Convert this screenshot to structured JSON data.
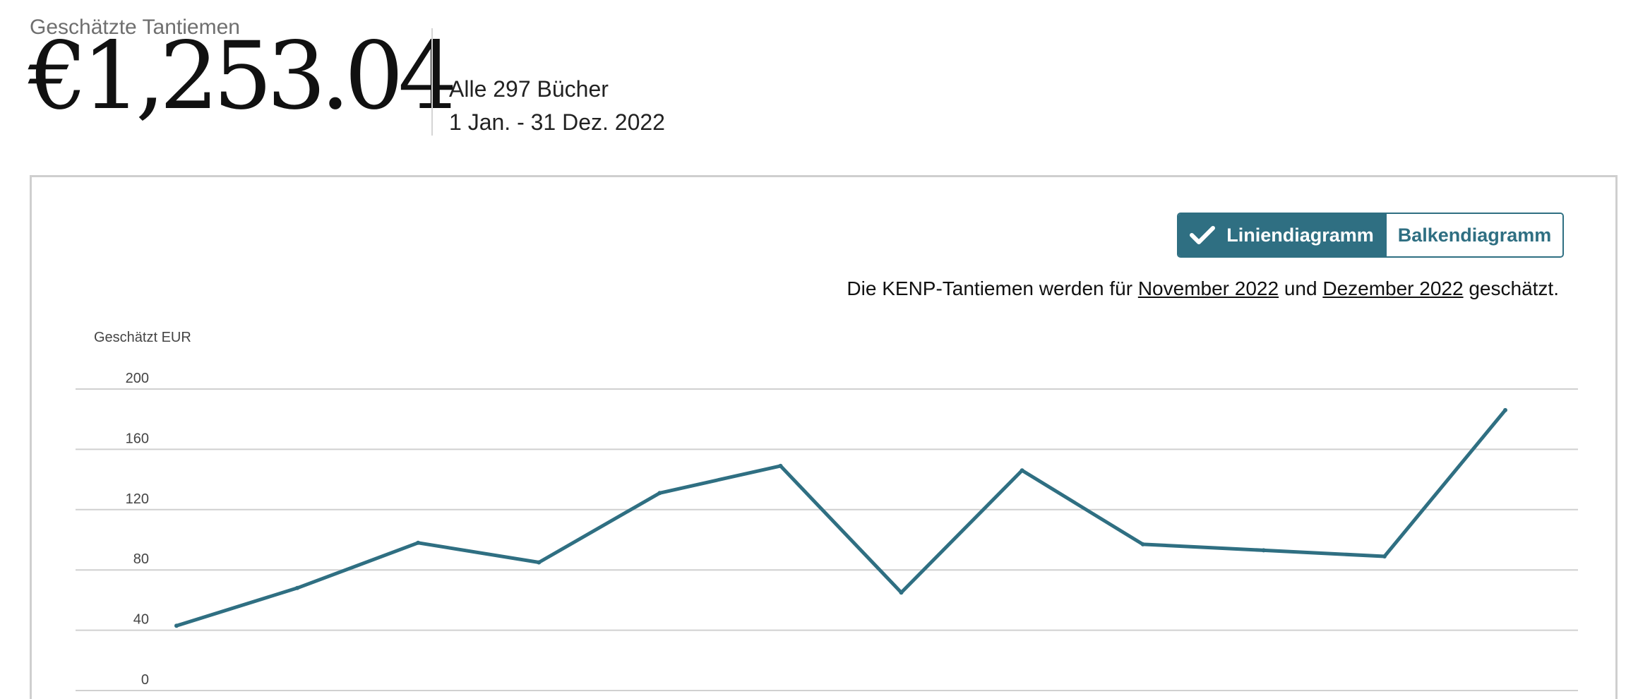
{
  "header": {
    "subtitle": "Geschätzte Tantiemen",
    "amount": "€1,253.04",
    "books": "Alle 297 Bücher",
    "date_range": "1 Jan. - 31 Dez. 2022"
  },
  "toggle": {
    "line_label": "Liniendiagramm",
    "bar_label": "Balkendiagramm",
    "active": "line"
  },
  "notice": {
    "prefix": "Die KENP-Tantiemen werden für",
    "link_1": "November 2022",
    "connector": "und",
    "link_2": "Dezember 2022",
    "suffix": "geschätzt."
  },
  "colors": {
    "accent": "#2f6f82",
    "line": "#2f6f82",
    "grid": "#d0d0d0",
    "subtle_text": "#6f6f6f"
  },
  "icons": {
    "toggle_check": "check-icon"
  },
  "chart_data": {
    "type": "line",
    "ylabel": "Geschätzt EUR",
    "ylim": [
      0,
      200
    ],
    "yticks": [
      0,
      40,
      80,
      120,
      160,
      200
    ],
    "grid": true,
    "series": [
      {
        "values": [
          43,
          68,
          98,
          85,
          131,
          149,
          65,
          146,
          97,
          93,
          89,
          186
        ]
      }
    ]
  }
}
